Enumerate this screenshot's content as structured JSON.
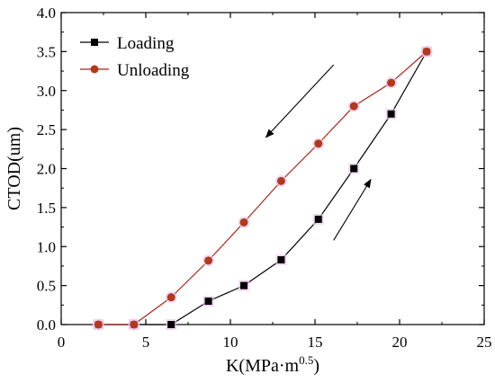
{
  "chart_data": {
    "type": "line",
    "xlabel": "K(MPa·m",
    "xlabel_sup": "0.5",
    "xlabel_suffix": ")",
    "ylabel": "CTOD(um)",
    "xlim": [
      0,
      25
    ],
    "ylim": [
      0,
      4.0
    ],
    "x_ticks": [
      "0",
      "5",
      "10",
      "15",
      "20",
      "25"
    ],
    "y_ticks": [
      "0.0",
      "0.5",
      "1.0",
      "1.5",
      "2.0",
      "2.5",
      "3.0",
      "3.5",
      "4.0"
    ],
    "x_tick_values": [
      0,
      5,
      10,
      15,
      20,
      25
    ],
    "y_tick_values": [
      0,
      0.5,
      1.0,
      1.5,
      2.0,
      2.5,
      3.0,
      3.5,
      4.0
    ],
    "grid": false,
    "legend_position": "top-left",
    "series": [
      {
        "name": "Loading",
        "marker": "square",
        "color": "#000000",
        "marker_color": "#000000",
        "x": [
          2.2,
          4.3,
          6.5,
          8.7,
          10.8,
          13.0,
          15.2,
          17.3,
          19.5,
          21.6
        ],
        "y": [
          0.0,
          0.0,
          0.0,
          0.3,
          0.5,
          0.83,
          1.35,
          2.0,
          2.7,
          3.5
        ]
      },
      {
        "name": "Unloading",
        "marker": "circle",
        "color": "#a0281e",
        "marker_color": "#b03a1e",
        "x": [
          2.2,
          4.3,
          6.5,
          8.7,
          10.8,
          13.0,
          15.2,
          17.3,
          19.5,
          21.6
        ],
        "y": [
          0.0,
          0.0,
          0.35,
          0.82,
          1.31,
          1.84,
          2.32,
          2.8,
          3.1,
          3.5
        ]
      }
    ],
    "annotations": [
      {
        "type": "arrow",
        "direction": "down-left",
        "x1": 16.1,
        "y1": 3.33,
        "x2": 12.1,
        "y2": 2.4
      },
      {
        "type": "arrow",
        "direction": "up-right",
        "x1": 16.1,
        "y1": 1.08,
        "x2": 18.3,
        "y2": 1.86
      }
    ]
  }
}
